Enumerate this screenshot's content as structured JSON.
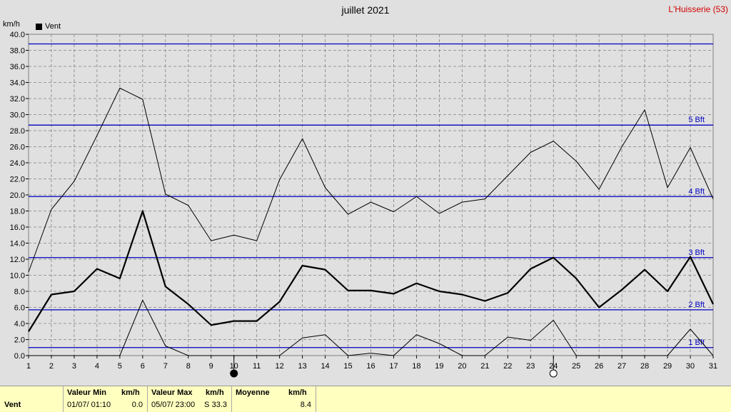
{
  "header": {
    "title": "juillet 2021",
    "station": "L'Huisserie (53)",
    "unit": "km/h",
    "legend_label": "Vent"
  },
  "chart_data": {
    "type": "line",
    "title": "juillet 2021",
    "ylabel": "km/h",
    "ylim": [
      0,
      40
    ],
    "y_ticks": [
      "0.0",
      "2.0",
      "4.0",
      "6.0",
      "8.0",
      "10.0",
      "12.0",
      "14.0",
      "16.0",
      "18.0",
      "20.0",
      "22.0",
      "24.0",
      "26.0",
      "28.0",
      "30.0",
      "32.0",
      "34.0",
      "36.0",
      "38.0",
      "40.0"
    ],
    "x": [
      1,
      2,
      3,
      4,
      5,
      6,
      7,
      8,
      9,
      10,
      11,
      12,
      13,
      14,
      15,
      16,
      17,
      18,
      19,
      20,
      21,
      22,
      23,
      24,
      25,
      26,
      27,
      28,
      29,
      30,
      31
    ],
    "grid": true,
    "legend_position": "top-left",
    "series": [
      {
        "name": "Vent",
        "role": "mean",
        "values": [
          3.0,
          7.6,
          8.0,
          10.8,
          9.6,
          18.0,
          8.6,
          6.4,
          3.8,
          4.3,
          4.3,
          6.7,
          11.2,
          10.7,
          8.1,
          8.1,
          7.7,
          9.0,
          8.0,
          7.6,
          6.8,
          7.8,
          10.8,
          12.2,
          9.6,
          6.0,
          8.2,
          10.7,
          8.0,
          12.3,
          6.4
        ]
      },
      {
        "role": "max",
        "values": [
          10.4,
          18.2,
          21.7,
          27.4,
          33.3,
          31.9,
          20.1,
          18.7,
          14.3,
          15.0,
          14.3,
          21.9,
          27.0,
          20.9,
          17.6,
          19.1,
          17.9,
          19.8,
          17.7,
          19.1,
          19.5,
          22.4,
          25.3,
          26.7,
          24.2,
          20.7,
          26.0,
          30.6,
          20.9,
          25.9,
          19.5
        ]
      },
      {
        "role": "min",
        "values": [
          0.0,
          0.0,
          0.0,
          0.0,
          0.0,
          6.9,
          1.2,
          0.0,
          0.0,
          0.0,
          0.0,
          0.0,
          2.2,
          2.6,
          0.0,
          0.3,
          0.0,
          2.6,
          1.5,
          0.0,
          0.0,
          2.3,
          1.9,
          4.4,
          0.0,
          0.0,
          0.0,
          0.0,
          0.0,
          3.3,
          0.0
        ]
      }
    ],
    "reference_lines": [
      {
        "label": "1 Bft",
        "value": 1.0
      },
      {
        "label": "2 Bft",
        "value": 5.7
      },
      {
        "label": "3 Bft",
        "value": 12.2
      },
      {
        "label": "4 Bft",
        "value": 19.8
      },
      {
        "label": "",
        "value": 28.7
      },
      {
        "label": "5 Bft",
        "value": 28.7
      },
      {
        "label": "",
        "value": 38.8
      }
    ],
    "moon_phases": [
      {
        "day": 10,
        "phase": "new"
      },
      {
        "day": 24,
        "phase": "full"
      }
    ],
    "colors": {
      "background": "#e0e0e0",
      "grid": "#808080",
      "series": "#000000",
      "reference": "#0000c0"
    }
  },
  "stats": {
    "label": "Vent",
    "min_header": "Valeur Min",
    "min_unit": "km/h",
    "min_date": "01/07/  01:10",
    "min_value": "0.0",
    "max_header": "Valeur Max",
    "max_unit": "km/h",
    "max_date": "05/07/  23:00",
    "max_dir": "S",
    "max_value": "33.3",
    "avg_header": "Moyenne",
    "avg_unit": "km/h",
    "avg_value": "8.4"
  }
}
